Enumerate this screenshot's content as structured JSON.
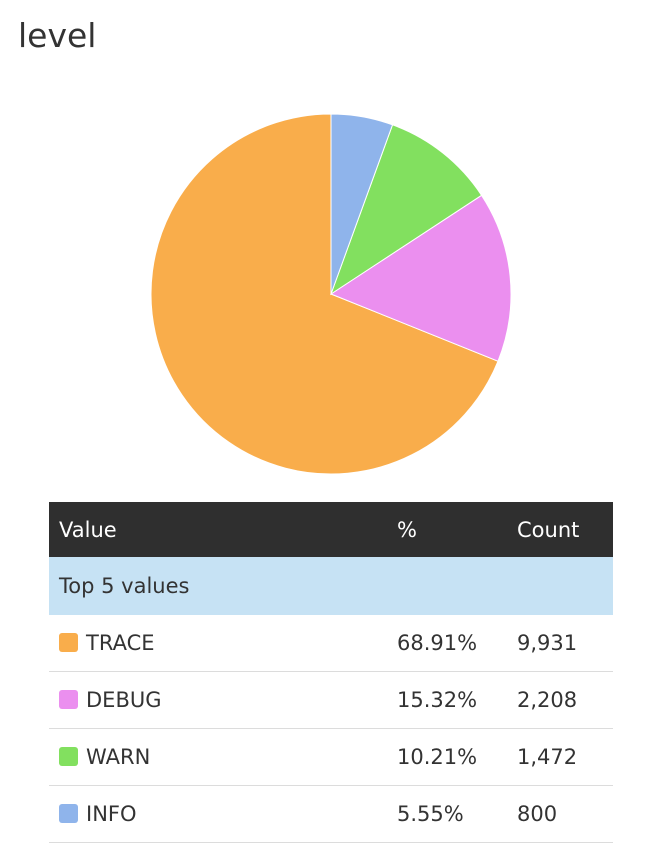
{
  "field_title": "level",
  "table": {
    "headers": {
      "value": "Value",
      "percent": "%",
      "count": "Count"
    },
    "group_label": "Top 5 values"
  },
  "chart_data": {
    "type": "pie",
    "categories": [
      "TRACE",
      "DEBUG",
      "WARN",
      "INFO"
    ],
    "values": [
      9931,
      2208,
      1472,
      800
    ],
    "percent_labels": [
      "68.91%",
      "15.32%",
      "10.21%",
      "5.55%"
    ],
    "count_labels": [
      "9,931",
      "2,208",
      "1,472",
      "800"
    ],
    "colors": [
      "#f9ad4b",
      "#eb8fef",
      "#82e05f",
      "#8fb4eb"
    ],
    "legend": "table-below"
  }
}
